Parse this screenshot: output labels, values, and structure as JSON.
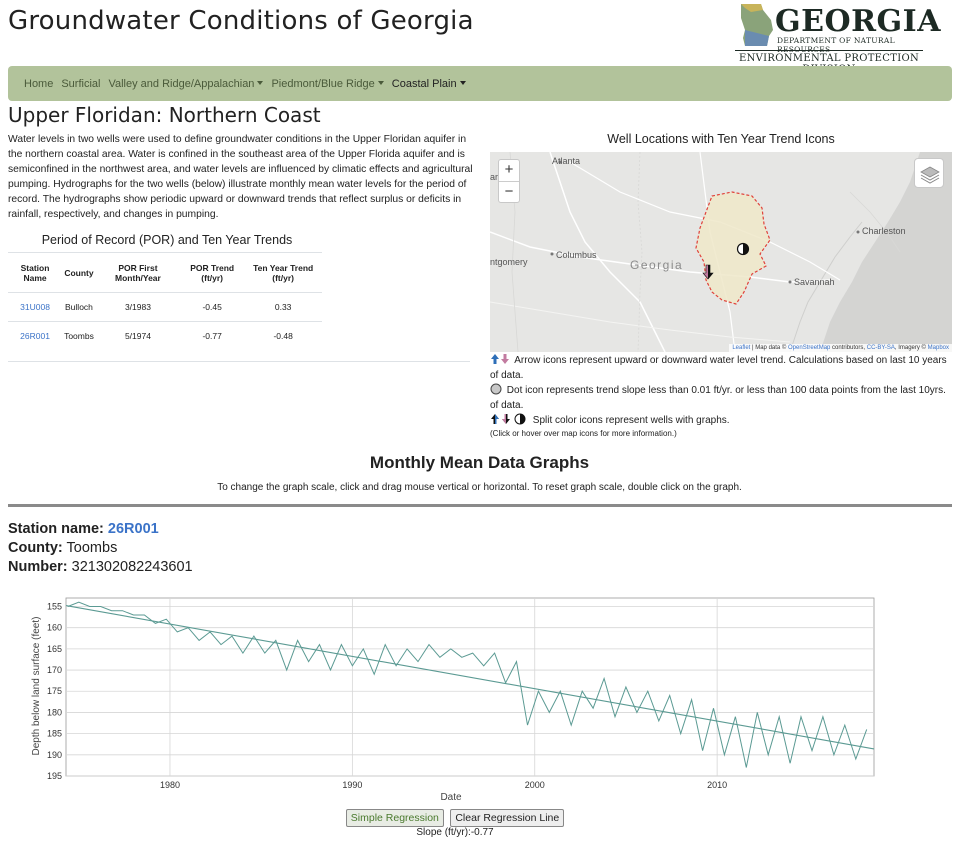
{
  "header": {
    "title": "Groundwater Conditions of Georgia",
    "logo_name": "GEORGIA",
    "logo_dept": "DEPARTMENT OF NATURAL RESOURCES",
    "logo_division": "ENVIRONMENTAL PROTECTION DIVISION"
  },
  "nav": {
    "items": [
      {
        "label": "Home",
        "dropdown": false
      },
      {
        "label": "Surficial",
        "dropdown": false
      },
      {
        "label": "Valley and Ridge/Appalachian",
        "dropdown": true
      },
      {
        "label": "Piedmont/Blue Ridge",
        "dropdown": true
      },
      {
        "label": "Coastal Plain",
        "dropdown": true,
        "active": true
      }
    ]
  },
  "page": {
    "heading": "Upper Floridan: Northern Coast",
    "intro": "Water levels in two wells were used to define groundwater conditions in the Upper Floridan aquifer in the northern coastal area. Water is confined in the southeast area of the Upper Florida aquifer and is semiconfined in the northwest area, and water levels are influenced by climatic effects and agricultural pumping. Hydrographs for the two wells (below) illustrate monthly mean water levels for the period of record. The hydrographs show periodic upward or downward trends that reflect surplus or deficits in rainfall, respectively, and changes in pumping."
  },
  "trend_table": {
    "heading": "Period of Record (POR) and Ten Year Trends",
    "columns": [
      "Station Name",
      "County",
      "POR First Month/Year",
      "POR Trend (ft/yr)",
      "Ten Year Trend (ft/yr)"
    ],
    "rows": [
      {
        "station": "31U008",
        "county": "Bulloch",
        "por_first": "3/1983",
        "por_trend": "-0.45",
        "ten_year": "0.33"
      },
      {
        "station": "26R001",
        "county": "Toombs",
        "por_first": "5/1974",
        "por_trend": "-0.77",
        "ten_year": "-0.48"
      }
    ]
  },
  "map": {
    "title": "Well Locations with Ten Year Trend Icons",
    "zoom_in": "+",
    "zoom_out": "−",
    "labels": {
      "atlanta": "Atlanta",
      "columbus": "Columbus",
      "montgomery": "ntgomery",
      "georgia": "Georgia",
      "charleston": "Charleston",
      "savannah": "Savannah"
    },
    "attribution_leaflet": "Leaflet",
    "attribution_text": "| Map data ©",
    "attribution_osm": "OpenStreetMap",
    "attribution_contrib": "contributors,",
    "attribution_license": "CC-BY-SA",
    "attribution_imagery": ", Imagery ©",
    "attribution_mapbox": "Mapbox",
    "colors": {
      "aquifer_fill": "#efe8c9",
      "aquifer_border": "#e0413a",
      "arrow_up": "#2e6fb8",
      "arrow_down": "#c27ba0"
    }
  },
  "legend": {
    "arrow": "Arrow icons represent upward or downward water level trend. Calculations based on last 10 years of data.",
    "dot": "Dot icon represents trend slope less than 0.01 ft/yr. or less than 100 data points from the last 10yrs. of data.",
    "split": "Split color icons represent wells with graphs.",
    "note": "(Click or hover over map icons for more information.)"
  },
  "graphs": {
    "heading": "Monthly Mean Data Graphs",
    "help": "To change the graph scale, click and drag mouse vertical or horizontal. To reset graph scale, double click on the graph."
  },
  "station": {
    "name_label": "Station name:",
    "name": "26R001",
    "county_label": "County:",
    "county": "Toombs",
    "number_label": "Number:",
    "number": "321302082243601"
  },
  "chart_data": {
    "type": "line",
    "title": "",
    "xlabel": "Date",
    "ylabel": "Depth below land surface (feet)",
    "xlim": [
      1974.3,
      2018.6
    ],
    "ylim": [
      195,
      153
    ],
    "y_inverted": true,
    "xticks": [
      1980,
      1990,
      2000,
      2010
    ],
    "yticks": [
      155,
      160,
      165,
      170,
      175,
      180,
      185,
      190,
      195
    ],
    "series": [
      {
        "role": "observed",
        "color": "#5b9a93",
        "x": [
          1974.4,
          1975.0,
          1975.6,
          1976.2,
          1976.8,
          1977.4,
          1978.0,
          1978.6,
          1979.2,
          1979.8,
          1980.4,
          1981.0,
          1981.6,
          1982.2,
          1982.8,
          1983.4,
          1984.0,
          1984.6,
          1985.2,
          1985.8,
          1986.4,
          1987.0,
          1987.6,
          1988.2,
          1988.8,
          1989.4,
          1990.0,
          1990.6,
          1991.2,
          1991.8,
          1992.4,
          1993.0,
          1993.6,
          1994.2,
          1994.8,
          1995.4,
          1996.0,
          1996.6,
          1997.2,
          1997.8,
          1998.4,
          1999.0,
          1999.6,
          2000.2,
          2000.8,
          2001.4,
          2002.0,
          2002.6,
          2003.2,
          2003.8,
          2004.4,
          2005.0,
          2005.6,
          2006.2,
          2006.8,
          2007.4,
          2008.0,
          2008.6,
          2009.2,
          2009.8,
          2010.4,
          2011.0,
          2011.6,
          2012.2,
          2012.8,
          2013.4,
          2014.0,
          2014.6,
          2015.2,
          2015.8,
          2016.4,
          2017.0,
          2017.6,
          2018.2
        ],
        "y": [
          155,
          154,
          155,
          155,
          156,
          156,
          157,
          157,
          159,
          158,
          161,
          160,
          163,
          161,
          164,
          162,
          166,
          162,
          166,
          163,
          170,
          163,
          168,
          164,
          170,
          164,
          169,
          165,
          171,
          164,
          169,
          165,
          168,
          164,
          167,
          165,
          167,
          166,
          169,
          166,
          173,
          168,
          183,
          175,
          180,
          175,
          183,
          175,
          179,
          172,
          181,
          174,
          180,
          175,
          182,
          176,
          185,
          177,
          189,
          179,
          190,
          181,
          193,
          180,
          190,
          181,
          192,
          181,
          189,
          181,
          190,
          183,
          191,
          184
        ]
      },
      {
        "role": "regression",
        "color": "#5b9a93",
        "x": [
          1974.3,
          2018.6
        ],
        "y": [
          154.8,
          188.6
        ]
      }
    ]
  },
  "controls": {
    "simple_regression": "Simple Regression",
    "clear_regression": "Clear Regression Line",
    "slope_label": "Slope (ft/yr):",
    "slope_value": "-0.77"
  }
}
